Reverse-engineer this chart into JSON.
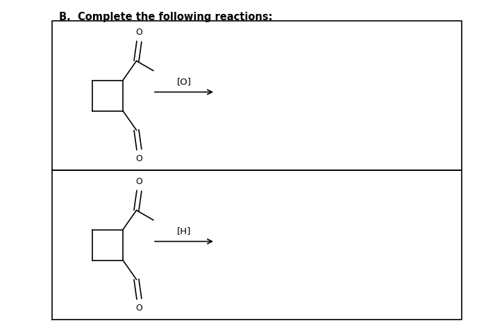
{
  "title": "B.  Complete the following reactions:",
  "title_fontsize": 10.5,
  "title_fontweight": "bold",
  "bg_color": "#ffffff",
  "reaction1_label": "[O]",
  "reaction2_label": "[H]",
  "lw": 1.2
}
